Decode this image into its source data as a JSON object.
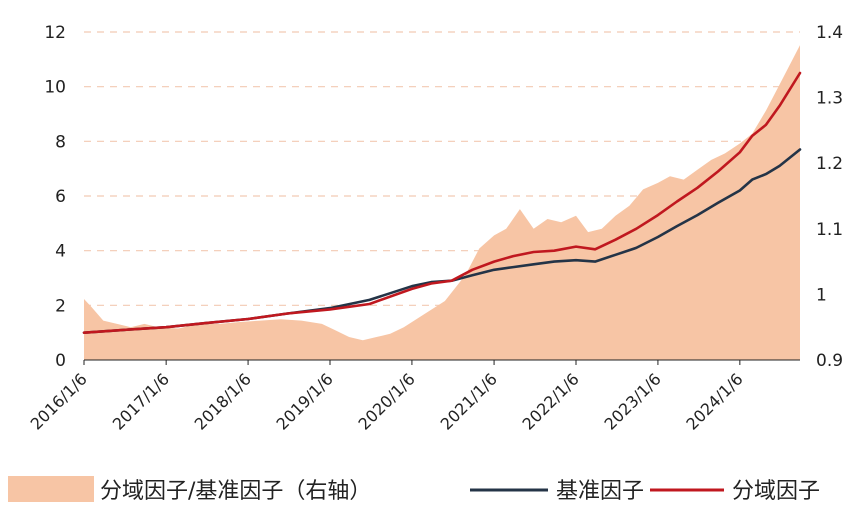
{
  "chart_data": {
    "type": "line",
    "title": "",
    "xlabel": "",
    "ylabel": "",
    "y_left": {
      "range": [
        0,
        12
      ],
      "ticks": [
        "0",
        "2",
        "4",
        "6",
        "8",
        "10",
        "12"
      ]
    },
    "y_right": {
      "range": [
        0.9,
        1.4
      ],
      "ticks": [
        "0.9",
        "1",
        "1.1",
        "1.2",
        "1.3",
        "1.4"
      ]
    },
    "x_range": [
      "2016-01-06",
      "2024-09-30"
    ],
    "x_ticks": [
      "2016/1/6",
      "2017/1/6",
      "2018/1/6",
      "2019/1/6",
      "2020/1/6",
      "2021/1/6",
      "2022/1/6",
      "2023/1/6",
      "2024/1/6"
    ],
    "grid": {
      "horizontal": true,
      "style": "dashed"
    },
    "legend_position": "bottom",
    "series": [
      {
        "name": "分域因子/基准因子（右轴）",
        "kind": "area",
        "axis": "right",
        "color": "#f7c5a5",
        "points": [
          [
            "2016-01-06",
            0.993
          ],
          [
            "2016-02-10",
            0.98
          ],
          [
            "2016-04-01",
            0.96
          ],
          [
            "2016-06-01",
            0.955
          ],
          [
            "2016-08-01",
            0.95
          ],
          [
            "2016-10-01",
            0.955
          ],
          [
            "2016-12-01",
            0.95
          ],
          [
            "2017-03-01",
            0.948
          ],
          [
            "2017-06-01",
            0.955
          ],
          [
            "2017-09-01",
            0.955
          ],
          [
            "2017-12-01",
            0.958
          ],
          [
            "2018-03-01",
            0.96
          ],
          [
            "2018-06-01",
            0.962
          ],
          [
            "2018-09-01",
            0.96
          ],
          [
            "2018-12-01",
            0.955
          ],
          [
            "2019-02-01",
            0.945
          ],
          [
            "2019-04-01",
            0.935
          ],
          [
            "2019-06-01",
            0.93
          ],
          [
            "2019-08-01",
            0.935
          ],
          [
            "2019-10-01",
            0.94
          ],
          [
            "2019-12-01",
            0.95
          ],
          [
            "2020-03-01",
            0.97
          ],
          [
            "2020-06-01",
            0.99
          ],
          [
            "2020-09-01",
            1.03
          ],
          [
            "2020-11-01",
            1.07
          ],
          [
            "2021-01-06",
            1.09
          ],
          [
            "2021-03-01",
            1.1
          ],
          [
            "2021-05-01",
            1.13
          ],
          [
            "2021-07-01",
            1.1
          ],
          [
            "2021-09-01",
            1.115
          ],
          [
            "2021-11-01",
            1.11
          ],
          [
            "2022-01-06",
            1.12
          ],
          [
            "2022-03-01",
            1.095
          ],
          [
            "2022-05-01",
            1.1
          ],
          [
            "2022-07-01",
            1.12
          ],
          [
            "2022-09-01",
            1.135
          ],
          [
            "2022-11-01",
            1.16
          ],
          [
            "2023-01-06",
            1.17
          ],
          [
            "2023-03-01",
            1.18
          ],
          [
            "2023-05-01",
            1.175
          ],
          [
            "2023-07-01",
            1.19
          ],
          [
            "2023-09-01",
            1.205
          ],
          [
            "2023-11-01",
            1.215
          ],
          [
            "2024-01-06",
            1.23
          ],
          [
            "2024-03-01",
            1.245
          ],
          [
            "2024-05-01",
            1.28
          ],
          [
            "2024-07-01",
            1.32
          ],
          [
            "2024-09-30",
            1.38
          ]
        ]
      },
      {
        "name": "基准因子",
        "kind": "line",
        "axis": "left",
        "color": "#243447",
        "points": [
          [
            "2016-01-06",
            1.0
          ],
          [
            "2016-07-01",
            1.1
          ],
          [
            "2017-01-06",
            1.2
          ],
          [
            "2017-07-01",
            1.35
          ],
          [
            "2018-01-06",
            1.5
          ],
          [
            "2018-07-01",
            1.7
          ],
          [
            "2019-01-06",
            1.9
          ],
          [
            "2019-07-01",
            2.2
          ],
          [
            "2020-01-06",
            2.7
          ],
          [
            "2020-04-01",
            2.85
          ],
          [
            "2020-07-01",
            2.9
          ],
          [
            "2020-10-01",
            3.1
          ],
          [
            "2021-01-06",
            3.3
          ],
          [
            "2021-04-01",
            3.4
          ],
          [
            "2021-07-01",
            3.5
          ],
          [
            "2021-10-01",
            3.6
          ],
          [
            "2022-01-06",
            3.65
          ],
          [
            "2022-04-01",
            3.6
          ],
          [
            "2022-07-01",
            3.85
          ],
          [
            "2022-10-01",
            4.1
          ],
          [
            "2023-01-06",
            4.5
          ],
          [
            "2023-04-01",
            4.9
          ],
          [
            "2023-07-01",
            5.3
          ],
          [
            "2023-10-01",
            5.75
          ],
          [
            "2024-01-06",
            6.2
          ],
          [
            "2024-03-01",
            6.6
          ],
          [
            "2024-05-01",
            6.8
          ],
          [
            "2024-07-01",
            7.1
          ],
          [
            "2024-09-30",
            7.7
          ]
        ]
      },
      {
        "name": "分域因子",
        "kind": "line",
        "axis": "left",
        "color": "#c0181f",
        "points": [
          [
            "2016-01-06",
            1.0
          ],
          [
            "2016-07-01",
            1.1
          ],
          [
            "2017-01-06",
            1.2
          ],
          [
            "2017-07-01",
            1.35
          ],
          [
            "2018-01-06",
            1.5
          ],
          [
            "2018-07-01",
            1.7
          ],
          [
            "2019-01-06",
            1.85
          ],
          [
            "2019-07-01",
            2.05
          ],
          [
            "2020-01-06",
            2.6
          ],
          [
            "2020-04-01",
            2.8
          ],
          [
            "2020-07-01",
            2.9
          ],
          [
            "2020-10-01",
            3.3
          ],
          [
            "2021-01-06",
            3.6
          ],
          [
            "2021-04-01",
            3.8
          ],
          [
            "2021-07-01",
            3.95
          ],
          [
            "2021-10-01",
            4.0
          ],
          [
            "2022-01-06",
            4.15
          ],
          [
            "2022-04-01",
            4.05
          ],
          [
            "2022-07-01",
            4.4
          ],
          [
            "2022-10-01",
            4.8
          ],
          [
            "2023-01-06",
            5.3
          ],
          [
            "2023-04-01",
            5.8
          ],
          [
            "2023-07-01",
            6.3
          ],
          [
            "2023-10-01",
            6.9
          ],
          [
            "2024-01-06",
            7.6
          ],
          [
            "2024-03-01",
            8.2
          ],
          [
            "2024-05-01",
            8.6
          ],
          [
            "2024-07-01",
            9.3
          ],
          [
            "2024-09-30",
            10.5
          ]
        ]
      }
    ],
    "legend": [
      "分域因子/基准因子（右轴）",
      "基准因子",
      "分域因子"
    ]
  }
}
